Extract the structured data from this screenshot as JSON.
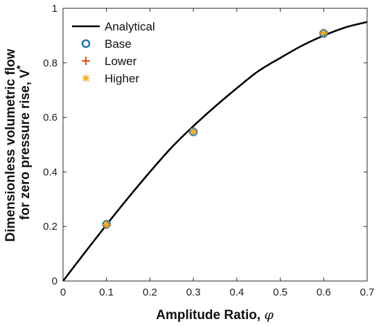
{
  "chart_data": {
    "type": "line",
    "xlabel": "Amplitude Ratio, ",
    "xlabel_symbol": "φ",
    "ylabel_line1": "Dimensionless volumetric flow",
    "ylabel_line2": "for zero pressure rise, V",
    "ylabel_sup": "*",
    "xlim": [
      0,
      0.7
    ],
    "ylim": [
      0,
      1
    ],
    "x_ticks": [
      "0",
      "0.1",
      "0.2",
      "0.3",
      "0.4",
      "0.5",
      "0.6",
      "0.7"
    ],
    "y_ticks": [
      "0",
      "0.2",
      "0.4",
      "0.6",
      "0.8",
      "1"
    ],
    "grid": false,
    "legend_position": "top-left",
    "series": [
      {
        "name": "Analytical",
        "marker": "line",
        "color": "#000000",
        "x": [
          0,
          0.05,
          0.1,
          0.15,
          0.2,
          0.25,
          0.3,
          0.35,
          0.4,
          0.45,
          0.5,
          0.55,
          0.6,
          0.65,
          0.7
        ],
        "y": [
          0,
          0.104,
          0.206,
          0.305,
          0.4,
          0.49,
          0.568,
          0.64,
          0.707,
          0.77,
          0.818,
          0.863,
          0.9,
          0.93,
          0.95
        ]
      },
      {
        "name": "Base",
        "marker": "circle",
        "color": "#1f77b4",
        "x": [
          0.1,
          0.3,
          0.6
        ],
        "y": [
          0.208,
          0.547,
          0.908
        ]
      },
      {
        "name": "Lower",
        "marker": "plus",
        "color": "#d95319",
        "x": [
          0.1,
          0.3,
          0.6
        ],
        "y": [
          0.206,
          0.549,
          0.91
        ]
      },
      {
        "name": "Higher",
        "marker": "asterisk",
        "color": "#edb120",
        "x": [
          0.1,
          0.3,
          0.6
        ],
        "y": [
          0.207,
          0.548,
          0.909
        ]
      }
    ]
  }
}
